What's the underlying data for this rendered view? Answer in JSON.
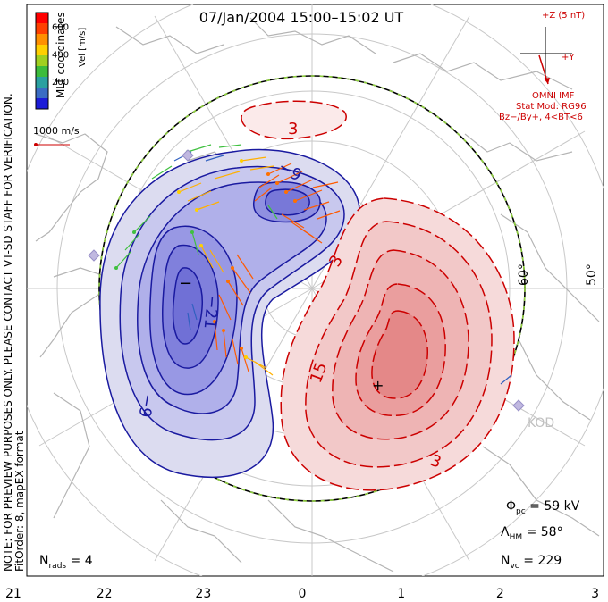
{
  "chart_data": {
    "type": "polar-map",
    "title": "07/Jan/2004 15:00–15:02 UT",
    "coords_label": "MLT coordinates",
    "note_lines": [
      "NOTE: FOR PREVIEW PURPOSES ONLY. PLEASE CONTACT VT-SD STAFF FOR VERIFICATION.",
      "FitOrder: 8, mapEX format"
    ],
    "colorbar": {
      "title": "Vel [m/s]",
      "ticks": [
        "200",
        "400",
        "600"
      ],
      "colors": [
        "#1c1cd8",
        "#3a6cc4",
        "#2aa0a0",
        "#3cbc3c",
        "#a0d020",
        "#ffd000",
        "#ff9000",
        "#ff4000",
        "#ff0000"
      ]
    },
    "ref_vector": "1000 m/s",
    "imf": {
      "axis_z": "+Z (5 nT)",
      "axis_y": "+Y",
      "label": "OMNI IMF",
      "model_line1": "Stat Mod: RG96",
      "model_line2": "Bz−/By+, 4<BT<6"
    },
    "lat_labels": [
      "60°",
      "50°"
    ],
    "mlt_ticks": [
      "21",
      "22",
      "23",
      "0",
      "1",
      "2",
      "3"
    ],
    "contour_labels": {
      "neg": [
        "−9",
        "−9",
        "−21"
      ],
      "pos": [
        "3",
        "3",
        "3",
        "15"
      ]
    },
    "extrema": {
      "min": "−",
      "max": "+"
    },
    "radar": "KOD",
    "stats": {
      "phi_pc": "59 kV",
      "lambda_hm": "58°",
      "n_vc": "229",
      "n_rads": "4"
    },
    "colors": {
      "negative": "#1a1aa0",
      "positive": "#cc0000",
      "hmb": "#000000",
      "hmb_dash": "#90d040",
      "land": "#b0b0b0"
    }
  }
}
